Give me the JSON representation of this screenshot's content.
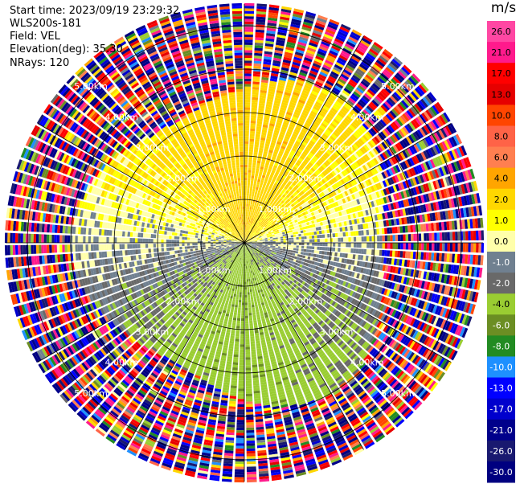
{
  "info": {
    "start_time": "Start time: 2023/09/19 23:29:32",
    "instrument": "WLS200s-181",
    "field": "Field: VEL",
    "elevation": "Elevation(deg): 35.30",
    "nrays": "NRays: 120"
  },
  "colorbar": {
    "unit": "m/s",
    "ticks": [
      "26.0",
      "21.0",
      "17.0",
      "13.0",
      "10.0",
      "8.0",
      "6.0",
      "4.0",
      "2.0",
      "1.0",
      "0.0",
      "-1.0",
      "-2.0",
      "-4.0",
      "-6.0",
      "-8.0",
      "-10.0",
      "-13.0",
      "-17.0",
      "-21.0",
      "-26.0",
      "-30.0"
    ],
    "colors": [
      "#ff47a3",
      "#ff1a8c",
      "#ff0000",
      "#e60000",
      "#ff4500",
      "#ff6347",
      "#ff7f50",
      "#ffa500",
      "#ffd700",
      "#ffff00",
      "#ffffaa",
      "#708090",
      "#696969",
      "#9acd32",
      "#6b8e23",
      "#228b22",
      "#1e90ff",
      "#0000ff",
      "#0000cd",
      "#00008b",
      "#191970",
      "#000080"
    ]
  },
  "chart_data": {
    "type": "heatmap",
    "projection": "PPI (polar, plan position indicator)",
    "field": "VEL",
    "unit": "m/s",
    "nrays": 120,
    "elevation_deg": 35.3,
    "max_range_km": 5.5,
    "range_rings_km": [
      1.0,
      2.0,
      3.0,
      4.0,
      5.0
    ],
    "range_ring_labels": [
      "1.00km",
      "2.00km",
      "3.00km",
      "4.00km",
      "5.00km"
    ],
    "color_scale_ticks": [
      26.0,
      21.0,
      17.0,
      13.0,
      10.0,
      8.0,
      6.0,
      4.0,
      2.0,
      1.0,
      0.0,
      -1.0,
      -2.0,
      -4.0,
      -6.0,
      -8.0,
      -10.0,
      -13.0,
      -17.0,
      -21.0,
      -26.0,
      -30.0
    ],
    "pattern": {
      "northern_half_near_range": "positive velocities 1 to 6 m/s (yellow/orange)",
      "southern_half_near_range": "negative velocities -1 to -8 m/s (green)",
      "east_west_band": "near zero velocities -1 to 1 m/s (gray)",
      "outer_ranges": "noisy values spanning the full color scale"
    }
  }
}
